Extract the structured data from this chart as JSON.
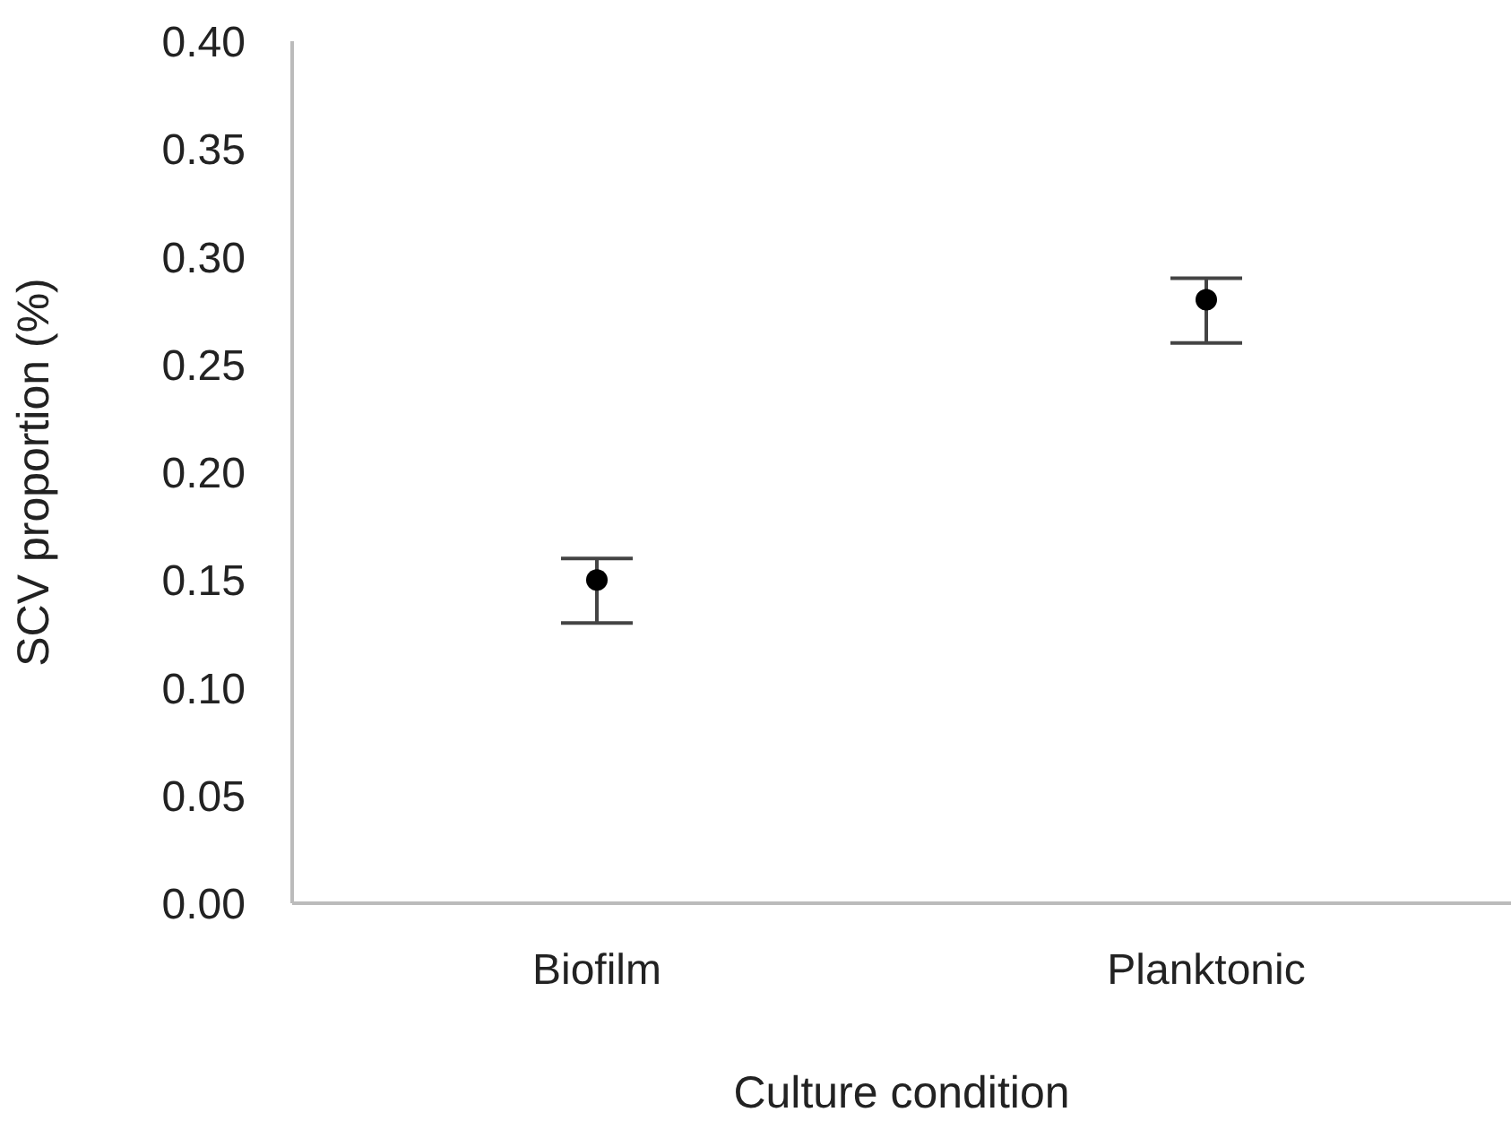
{
  "chart_data": {
    "type": "scatter",
    "xlabel": "Culture condition",
    "ylabel": "SCV proportion (%)",
    "categories": [
      "Biofilm",
      "Planktonic"
    ],
    "values": [
      0.15,
      0.28
    ],
    "errors": [
      [
        0.13,
        0.16
      ],
      [
        0.26,
        0.29
      ]
    ],
    "color": "#000000",
    "marker": "circle",
    "grid": false,
    "legend": false,
    "ylim": [
      0,
      0.4
    ],
    "yticks": [
      {
        "value": 0,
        "label": "0.00"
      },
      {
        "value": 0.05,
        "label": "0.05"
      },
      {
        "value": 0.1,
        "label": "0.10"
      },
      {
        "value": 0.15,
        "label": "0.15"
      },
      {
        "value": 0.2,
        "label": "0.20"
      },
      {
        "value": 0.25,
        "label": "0.25"
      },
      {
        "value": 0.3,
        "label": "0.30"
      },
      {
        "value": 0.35,
        "label": "0.35"
      },
      {
        "value": 0.4,
        "label": "0.40"
      }
    ]
  }
}
